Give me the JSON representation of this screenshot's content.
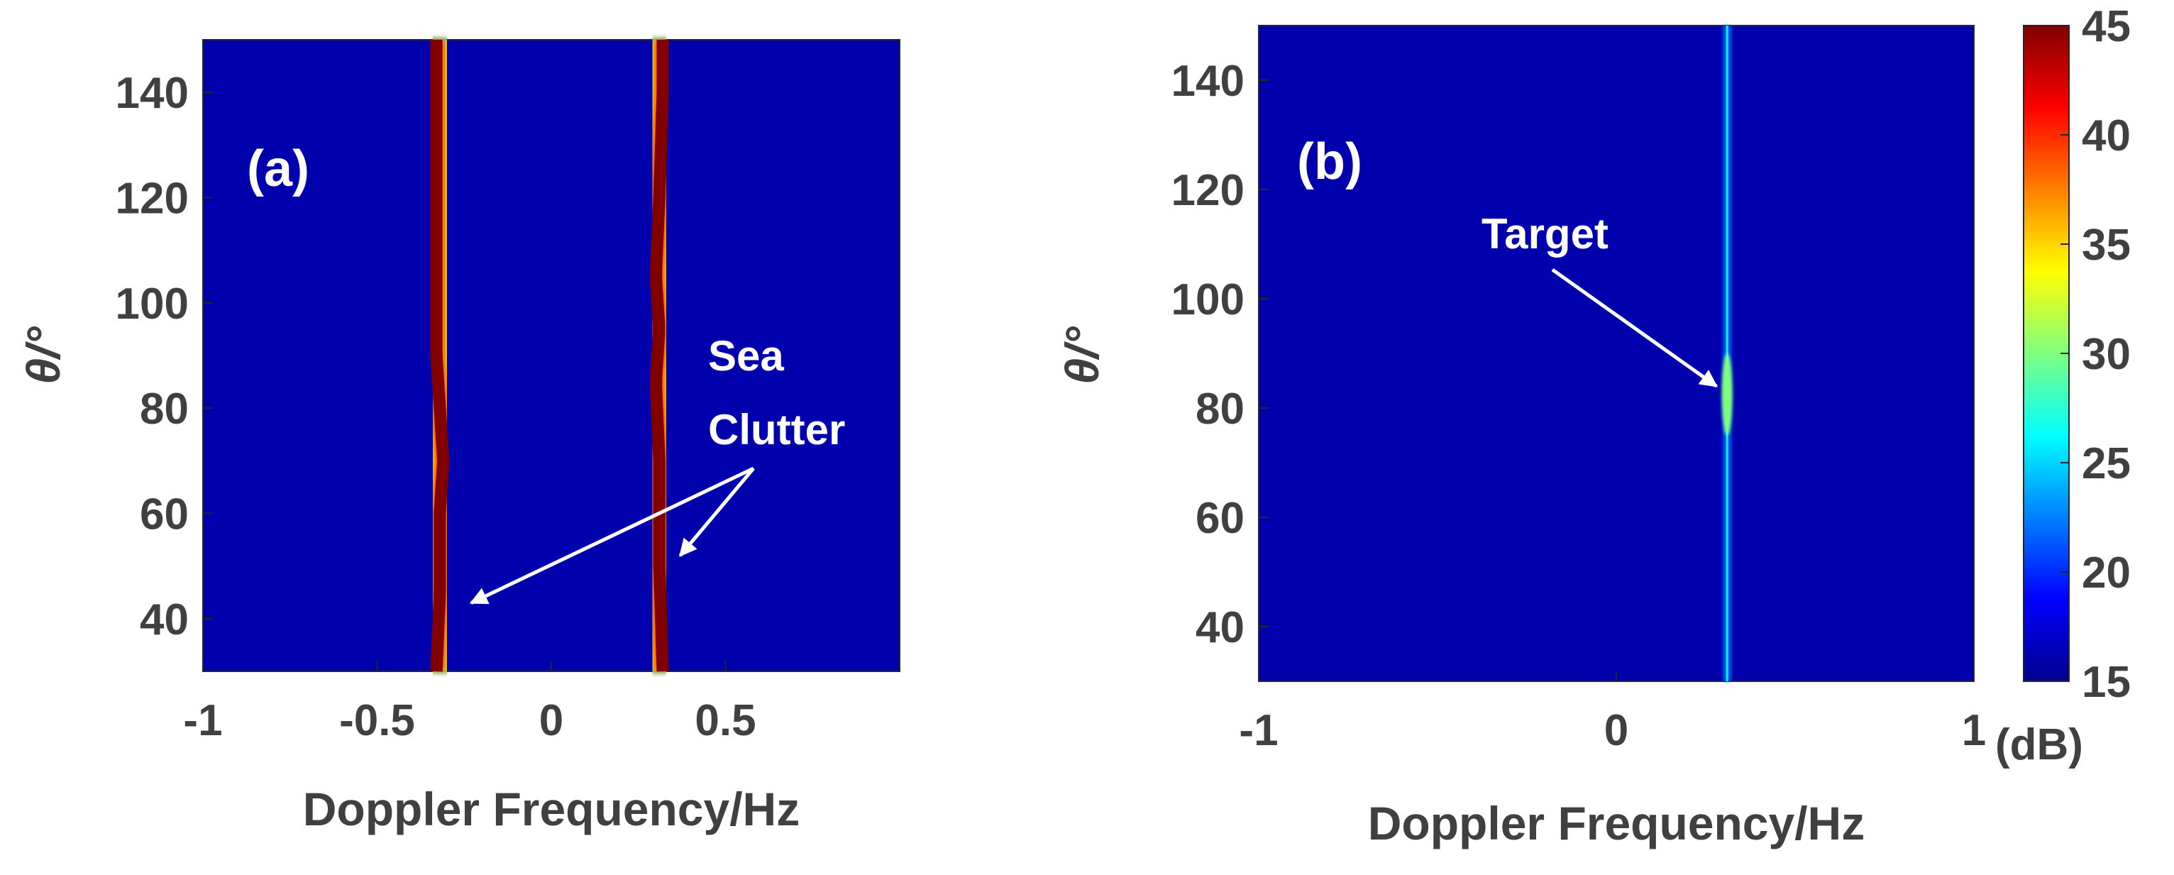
{
  "chart_data": [
    {
      "type": "heatmap",
      "panel_label": "(a)",
      "title": "",
      "xlabel": "Doppler Frequency/Hz",
      "ylabel": "θ/°",
      "xlim": [
        -1,
        1
      ],
      "ylim": [
        30,
        150
      ],
      "xticks": [
        -1,
        -0.5,
        0,
        0.5
      ],
      "xtick_labels": [
        "-1",
        "-0.5",
        "0",
        "0.5"
      ],
      "yticks": [
        40,
        60,
        80,
        100,
        120,
        140
      ],
      "ytick_labels": [
        "40",
        "60",
        "80",
        "100",
        "120",
        "140"
      ],
      "background_db": 16,
      "ridges": [
        {
          "name": "negative Bragg line",
          "peak_db": 45,
          "width_hz": 0.035,
          "track": [
            {
              "theta": 30,
              "freq": -0.33
            },
            {
              "theta": 45,
              "freq": -0.32
            },
            {
              "theta": 60,
              "freq": -0.32
            },
            {
              "theta": 70,
              "freq": -0.31
            },
            {
              "theta": 80,
              "freq": -0.32
            },
            {
              "theta": 90,
              "freq": -0.33
            },
            {
              "theta": 110,
              "freq": -0.33
            },
            {
              "theta": 130,
              "freq": -0.33
            },
            {
              "theta": 150,
              "freq": -0.33
            }
          ]
        },
        {
          "name": "positive Bragg line",
          "peak_db": 45,
          "width_hz": 0.035,
          "track": [
            {
              "theta": 30,
              "freq": 0.32
            },
            {
              "theta": 50,
              "freq": 0.31
            },
            {
              "theta": 70,
              "freq": 0.31
            },
            {
              "theta": 85,
              "freq": 0.3
            },
            {
              "theta": 95,
              "freq": 0.31
            },
            {
              "theta": 105,
              "freq": 0.3
            },
            {
              "theta": 120,
              "freq": 0.31
            },
            {
              "theta": 140,
              "freq": 0.32
            },
            {
              "theta": 150,
              "freq": 0.32
            }
          ]
        }
      ],
      "annotation": {
        "lines": [
          "Sea",
          "Clutter"
        ],
        "arrow_targets": [
          {
            "freq": -0.23,
            "theta": 43
          },
          {
            "freq": 0.37,
            "theta": 52
          }
        ]
      }
    },
    {
      "type": "heatmap",
      "panel_label": "(b)",
      "title": "",
      "xlabel": "Doppler Frequency/Hz",
      "ylabel": "θ/°",
      "xlim": [
        -1,
        1
      ],
      "ylim": [
        30,
        150
      ],
      "xticks": [
        -1,
        0,
        1
      ],
      "xtick_labels": [
        "-1",
        "0",
        "1"
      ],
      "yticks": [
        40,
        60,
        80,
        100,
        120,
        140
      ],
      "ytick_labels": [
        "40",
        "60",
        "80",
        "100",
        "120",
        "140"
      ],
      "background_db": 16,
      "ridges": [
        {
          "name": "target line",
          "freq": 0.31,
          "peak_db": 30,
          "width_hz": 0.004,
          "bright_theta": [
            75,
            90
          ]
        }
      ],
      "annotation": {
        "text": "Target",
        "arrow_target": {
          "freq": 0.28,
          "theta": 84
        }
      }
    }
  ],
  "colorbar": {
    "colormap": "jet",
    "range": [
      15,
      45
    ],
    "ticks": [
      15,
      20,
      25,
      30,
      35,
      40,
      45
    ],
    "tick_labels": [
      "15",
      "20",
      "25",
      "30",
      "35",
      "40",
      "45"
    ],
    "unit_label": "(dB)"
  },
  "colors": {
    "jet_stops": [
      "#00008f",
      "#0000ff",
      "#00ffff",
      "#ffff00",
      "#ff0000",
      "#800000"
    ],
    "text": "#404040",
    "annotation": "#ffffff",
    "axis": "#262626"
  }
}
